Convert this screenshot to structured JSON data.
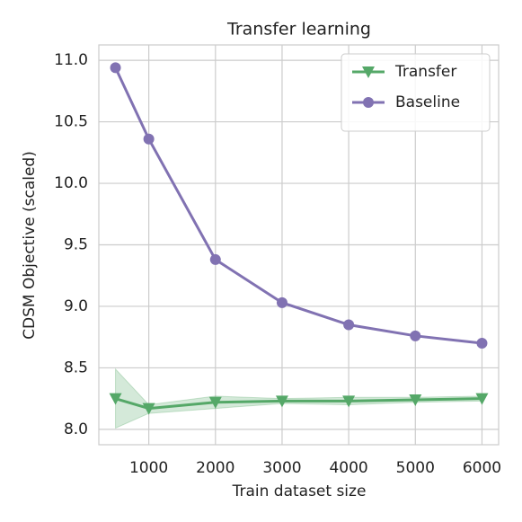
{
  "chart_data": {
    "type": "line",
    "title": "Transfer learning",
    "xlabel": "Train dataset size",
    "ylabel": "CDSM Objective (scaled)",
    "x": [
      500,
      1000,
      2000,
      3000,
      4000,
      5000,
      6000
    ],
    "series": [
      {
        "name": "Transfer",
        "color": "#55a868",
        "marker": "triangle-down",
        "values": [
          8.25,
          8.17,
          8.22,
          8.23,
          8.23,
          8.24,
          8.25
        ],
        "lower": [
          8.01,
          8.13,
          8.17,
          8.21,
          8.2,
          8.22,
          8.23
        ],
        "upper": [
          8.49,
          8.2,
          8.27,
          8.25,
          8.26,
          8.26,
          8.27
        ]
      },
      {
        "name": "Baseline",
        "color": "#8172b2",
        "marker": "circle",
        "values": [
          10.94,
          10.36,
          9.38,
          9.03,
          8.85,
          8.76,
          8.7
        ]
      }
    ],
    "xlim": [
      250,
      6250
    ],
    "xticks": [
      1000,
      2000,
      3000,
      4000,
      5000,
      6000
    ],
    "ylim": [
      7.875,
      11.125
    ],
    "yticks": [
      {
        "value": 8,
        "label": "8.0"
      },
      8.5,
      {
        "value": 9,
        "label": "9.0"
      },
      9.5,
      {
        "value": 10,
        "label": "10.0"
      },
      10.5,
      {
        "value": 11,
        "label": "11.0"
      }
    ],
    "grid": true,
    "legend": "upper right"
  }
}
